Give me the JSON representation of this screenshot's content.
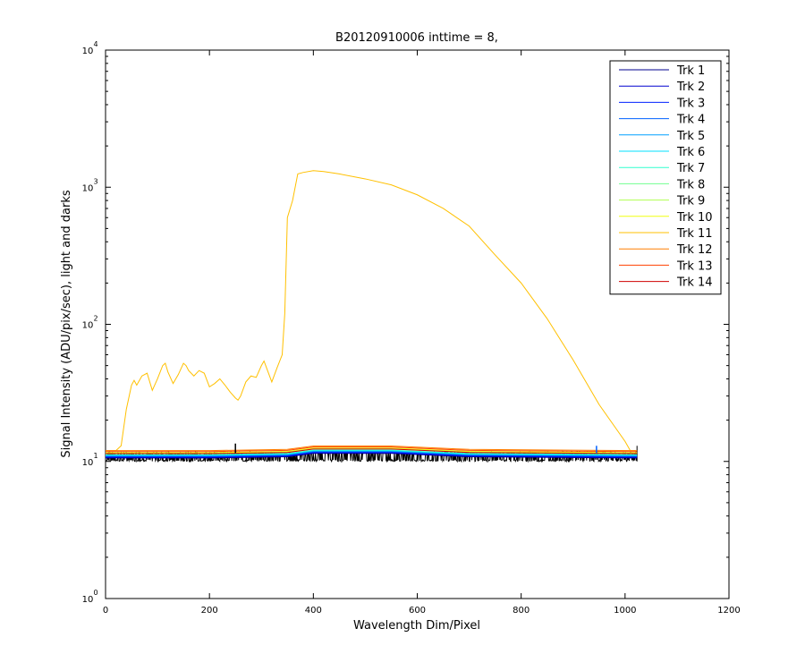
{
  "chart_data": {
    "type": "line",
    "title": "B20120910006 inttime = 8,",
    "xlabel": "Wavelength Dim/Pixel",
    "ylabel": "Signal Intensity (ADU/pix/sec), light and darks",
    "xlim": [
      0,
      1200
    ],
    "ylim": [
      1,
      10000
    ],
    "y_scale": "log",
    "grid": false,
    "legend_position": "top-right",
    "x_ticks": [
      0,
      200,
      400,
      600,
      800,
      1000,
      1200
    ],
    "y_ticks": [
      {
        "value": 1,
        "base": "10",
        "exp": "0"
      },
      {
        "value": 10,
        "base": "10",
        "exp": "1"
      },
      {
        "value": 100,
        "base": "10",
        "exp": "2"
      },
      {
        "value": 1000,
        "base": "10",
        "exp": "3"
      },
      {
        "value": 10000,
        "base": "10",
        "exp": "4"
      }
    ],
    "series": [
      {
        "name": "Trk 1",
        "color": "#00008f",
        "level": 10.6
      },
      {
        "name": "Trk 2",
        "color": "#0000cf",
        "level": 10.7
      },
      {
        "name": "Trk 3",
        "color": "#0020ff",
        "level": 10.8
      },
      {
        "name": "Trk 4",
        "color": "#0060ff",
        "level": 10.9
      },
      {
        "name": "Trk 5",
        "color": "#00a0ff",
        "level": 11.0
      },
      {
        "name": "Trk 6",
        "color": "#00e0ff",
        "level": 11.1
      },
      {
        "name": "Trk 7",
        "color": "#30ffcf",
        "level": 11.2
      },
      {
        "name": "Trk 8",
        "color": "#70ff8f",
        "level": 11.4
      },
      {
        "name": "Trk 9",
        "color": "#b0ff50",
        "level": 11.5
      },
      {
        "name": "Trk 10",
        "color": "#f0ff10",
        "level": 11.6
      },
      {
        "name": "Trk 11",
        "color": "#ffc000",
        "x": [
          0,
          20,
          30,
          40,
          50,
          55,
          60,
          70,
          80,
          90,
          100,
          110,
          115,
          120,
          130,
          140,
          150,
          155,
          160,
          170,
          180,
          190,
          200,
          210,
          220,
          230,
          240,
          250,
          255,
          260,
          270,
          280,
          290,
          300,
          305,
          310,
          320,
          330,
          340,
          345,
          350,
          360,
          370,
          380,
          400,
          420,
          450,
          500,
          550,
          600,
          650,
          700,
          750,
          800,
          850,
          900,
          950,
          1000,
          1010,
          1020
        ],
        "y": [
          12,
          12,
          13,
          24,
          36,
          39,
          36,
          42,
          44,
          33,
          40,
          50,
          52,
          45,
          37,
          43,
          52,
          50,
          46,
          42,
          46,
          44,
          35,
          37,
          40,
          36,
          32,
          29,
          28,
          30,
          38,
          42,
          41,
          50,
          54,
          48,
          38,
          48,
          60,
          120,
          600,
          800,
          1250,
          1280,
          1320,
          1300,
          1250,
          1150,
          1040,
          880,
          700,
          520,
          320,
          200,
          110,
          55,
          26,
          14,
          12,
          12
        ]
      },
      {
        "name": "Trk 12",
        "color": "#ff7f00",
        "level": 12.0
      },
      {
        "name": "Trk 13",
        "color": "#ff4000",
        "level": 11.8
      },
      {
        "name": "Trk 14",
        "color": "#cf0000",
        "level": 11.4
      }
    ],
    "dark_band": {
      "color": "#000000",
      "low": 10.0,
      "high": 11.8,
      "x_start": 0,
      "x_end": 1023
    },
    "spike_markers": [
      {
        "x": 250,
        "y": 13.5,
        "color": "#000000"
      },
      {
        "x": 945,
        "y": 13,
        "color": "#0060ff"
      }
    ]
  }
}
